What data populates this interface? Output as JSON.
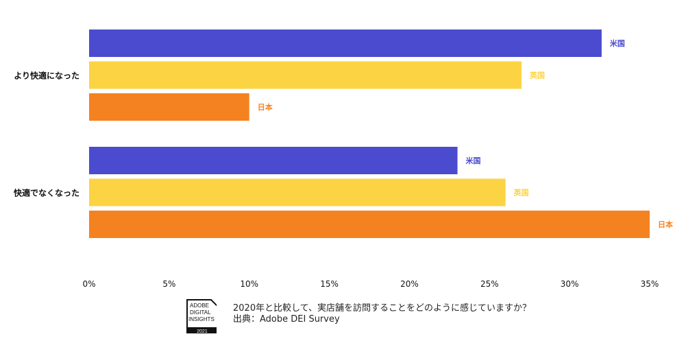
{
  "chart_data": {
    "type": "bar",
    "orientation": "horizontal",
    "title": "",
    "xlabel": "",
    "ylabel": "",
    "categories": [
      "より快適になった",
      "快適でなくなった"
    ],
    "series": [
      {
        "name": "米国",
        "color": "#4a4bcf",
        "values": [
          32,
          23
        ]
      },
      {
        "name": "英国",
        "color": "#fcd343",
        "values": [
          27,
          26
        ]
      },
      {
        "name": "日本",
        "color": "#f58220",
        "values": [
          10,
          35
        ]
      }
    ],
    "xlim": [
      0,
      35
    ],
    "xticks": [
      0,
      5,
      10,
      15,
      20,
      25,
      30,
      35
    ],
    "xtick_labels": [
      "0%",
      "5%",
      "10%",
      "15%",
      "20%",
      "25%",
      "30%",
      "35%"
    ],
    "grid": false,
    "legend": "inline labels at bar ends"
  },
  "footer": {
    "question": "2020年と比較して、実店舗を訪問することをどのように感じていますか？",
    "source": "出典：Adobe DEI Survey",
    "logo_text": [
      "ADOBE",
      "DIGITAL",
      "INSIGHTS",
      "2021"
    ]
  }
}
